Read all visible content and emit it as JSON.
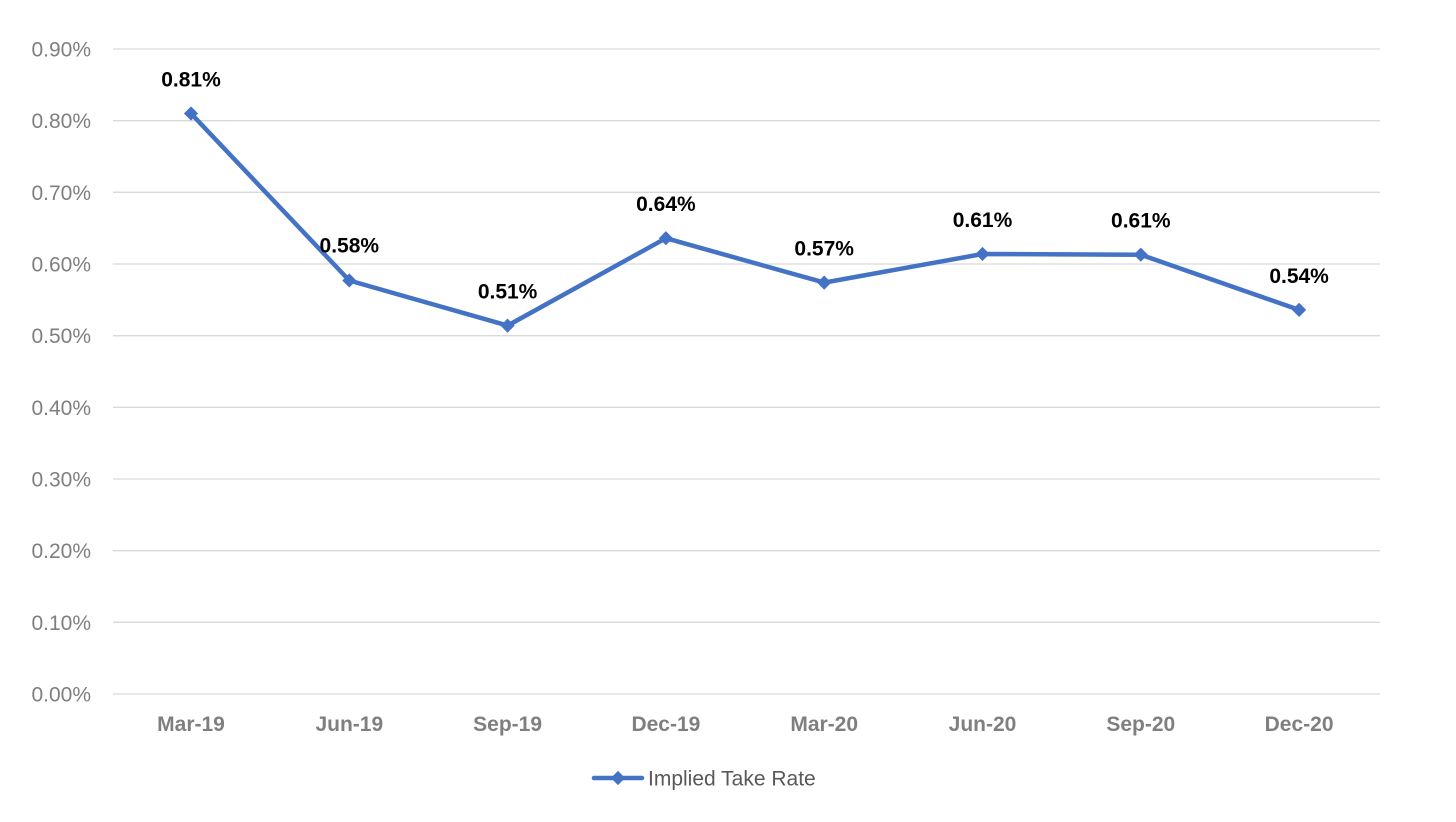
{
  "chart_data": {
    "type": "line",
    "title": "",
    "xlabel": "",
    "ylabel": "",
    "categories": [
      "Mar-19",
      "Jun-19",
      "Sep-19",
      "Dec-19",
      "Mar-20",
      "Jun-20",
      "Sep-20",
      "Dec-20"
    ],
    "series": [
      {
        "name": "Implied Take Rate",
        "values": [
          0.81,
          0.577,
          0.514,
          0.636,
          0.574,
          0.614,
          0.613,
          0.536
        ],
        "data_labels": [
          "0.81%",
          "0.58%",
          "0.51%",
          "0.64%",
          "0.57%",
          "0.61%",
          "0.61%",
          "0.54%"
        ],
        "color": "#4472c4",
        "marker": "diamond"
      }
    ],
    "ylim": [
      0,
      0.9
    ],
    "y_ticks": [
      0,
      0.1,
      0.2,
      0.3,
      0.4,
      0.5,
      0.6,
      0.7,
      0.8,
      0.9
    ],
    "y_tick_labels": [
      "0.00%",
      "0.10%",
      "0.20%",
      "0.30%",
      "0.40%",
      "0.50%",
      "0.60%",
      "0.70%",
      "0.80%",
      "0.90%"
    ],
    "grid": true,
    "legend": "bottom-center",
    "colors": {
      "gridline": "#d9d9d9",
      "axis_text": "#7f7f7f",
      "data_label": "#000000",
      "legend_text": "#595959"
    }
  }
}
